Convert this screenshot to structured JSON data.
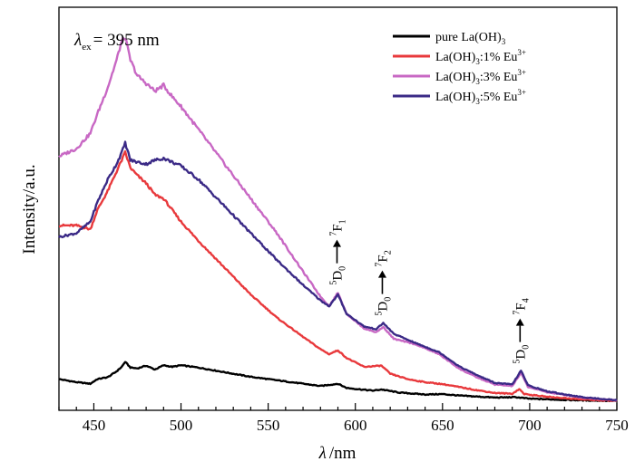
{
  "chart_data": {
    "type": "line",
    "title": "",
    "xlabel": "λ /nm",
    "xlabel_symbol": "λ",
    "xlabel_unit": "/nm",
    "ylabel": "Intensity/a.u.",
    "xlim": [
      430,
      750
    ],
    "ylim": [
      0,
      100
    ],
    "x_ticks": [
      450,
      500,
      550,
      600,
      650,
      700,
      750
    ],
    "y_tick_labels": false,
    "grid": false,
    "legend_position": "top-right",
    "excitation_label": {
      "symbol": "λ",
      "sub": "ex",
      "text": "= 395 nm"
    },
    "series": [
      {
        "name": "pure La(OH)3",
        "legend": {
          "text": "pure La(OH)",
          "sub": "3",
          "rest": "",
          "sup": ""
        },
        "color": "#000000",
        "points": [
          [
            430,
            6.0
          ],
          [
            440,
            5.2
          ],
          [
            448,
            4.8
          ],
          [
            452,
            6.0
          ],
          [
            458,
            6.5
          ],
          [
            463,
            8.0
          ],
          [
            466,
            9.2
          ],
          [
            468,
            10.5
          ],
          [
            471,
            9.0
          ],
          [
            475,
            8.8
          ],
          [
            480,
            9.5
          ],
          [
            485,
            8.5
          ],
          [
            490,
            9.6
          ],
          [
            495,
            9.2
          ],
          [
            500,
            9.6
          ],
          [
            510,
            9.0
          ],
          [
            525,
            7.8
          ],
          [
            540,
            6.6
          ],
          [
            560,
            5.4
          ],
          [
            580,
            4.2
          ],
          [
            590,
            4.8
          ],
          [
            595,
            3.7
          ],
          [
            610,
            3.0
          ],
          [
            615,
            3.3
          ],
          [
            625,
            2.5
          ],
          [
            640,
            2.0
          ],
          [
            650,
            2.1
          ],
          [
            660,
            1.7
          ],
          [
            680,
            1.2
          ],
          [
            692,
            1.3
          ],
          [
            700,
            0.9
          ],
          [
            720,
            0.6
          ],
          [
            750,
            0.3
          ]
        ]
      },
      {
        "name": "La(OH)3:1% Eu3+",
        "legend": {
          "text": "La(OH)",
          "sub": "3",
          "rest": ":1% Eu",
          "sup": "3+"
        },
        "color": "#e8393c",
        "points": [
          [
            430,
            46.0
          ],
          [
            440,
            46.0
          ],
          [
            448,
            45.0
          ],
          [
            452,
            50.0
          ],
          [
            458,
            55.0
          ],
          [
            463,
            60.0
          ],
          [
            466,
            63.0
          ],
          [
            468,
            65.0
          ],
          [
            471,
            61.0
          ],
          [
            475,
            59.0
          ],
          [
            480,
            57.0
          ],
          [
            485,
            54.0
          ],
          [
            490,
            53.0
          ],
          [
            495,
            50.0
          ],
          [
            500,
            47.0
          ],
          [
            510,
            42.0
          ],
          [
            525,
            35.0
          ],
          [
            540,
            28.0
          ],
          [
            555,
            22.0
          ],
          [
            570,
            17.0
          ],
          [
            580,
            13.8
          ],
          [
            585,
            12.5
          ],
          [
            590,
            13.5
          ],
          [
            595,
            11.5
          ],
          [
            605,
            9.2
          ],
          [
            615,
            9.5
          ],
          [
            620,
            7.4
          ],
          [
            630,
            6.0
          ],
          [
            640,
            5.2
          ],
          [
            650,
            4.7
          ],
          [
            660,
            3.9
          ],
          [
            670,
            3.1
          ],
          [
            680,
            2.4
          ],
          [
            690,
            2.2
          ],
          [
            694,
            3.4
          ],
          [
            697,
            2.1
          ],
          [
            710,
            1.4
          ],
          [
            730,
            0.7
          ],
          [
            750,
            0.3
          ]
        ]
      },
      {
        "name": "La(OH)3:3% Eu3+",
        "legend": {
          "text": "La(OH)",
          "sub": "3",
          "rest": ":3% Eu",
          "sup": "3+"
        },
        "color": "#c868c4",
        "points": [
          [
            430,
            64.0
          ],
          [
            440,
            66.0
          ],
          [
            448,
            70.0
          ],
          [
            452,
            75.0
          ],
          [
            458,
            82.0
          ],
          [
            463,
            89.0
          ],
          [
            466,
            94.0
          ],
          [
            468,
            95.0
          ],
          [
            471,
            89.0
          ],
          [
            475,
            85.0
          ],
          [
            480,
            83.0
          ],
          [
            485,
            81.0
          ],
          [
            490,
            82.5
          ],
          [
            495,
            79.5
          ],
          [
            500,
            77.0
          ],
          [
            510,
            71.0
          ],
          [
            525,
            62.0
          ],
          [
            540,
            53.0
          ],
          [
            555,
            44.0
          ],
          [
            570,
            34.0
          ],
          [
            580,
            27.5
          ],
          [
            585,
            25.0
          ],
          [
            590,
            28.5
          ],
          [
            595,
            23.0
          ],
          [
            605,
            19.2
          ],
          [
            612,
            18.2
          ],
          [
            616,
            19.6
          ],
          [
            622,
            16.5
          ],
          [
            635,
            15.0
          ],
          [
            648,
            12.5
          ],
          [
            660,
            8.6
          ],
          [
            670,
            6.4
          ],
          [
            680,
            4.6
          ],
          [
            690,
            4.2
          ],
          [
            695,
            7.6
          ],
          [
            699,
            4.0
          ],
          [
            710,
            2.6
          ],
          [
            730,
            1.2
          ],
          [
            750,
            0.5
          ]
        ]
      },
      {
        "name": "La(OH)3:5% Eu3+",
        "legend": {
          "text": "La(OH)",
          "sub": "3",
          "rest": ":5% Eu",
          "sup": "3+"
        },
        "color": "#3b2a86",
        "points": [
          [
            430,
            43.0
          ],
          [
            440,
            44.0
          ],
          [
            448,
            47.0
          ],
          [
            452,
            52.0
          ],
          [
            458,
            58.0
          ],
          [
            463,
            62.0
          ],
          [
            466,
            65.0
          ],
          [
            468,
            67.5
          ],
          [
            471,
            63.0
          ],
          [
            475,
            62.5
          ],
          [
            480,
            62.0
          ],
          [
            485,
            63.0
          ],
          [
            490,
            63.5
          ],
          [
            495,
            62.5
          ],
          [
            500,
            61.5
          ],
          [
            510,
            58.0
          ],
          [
            525,
            51.0
          ],
          [
            540,
            44.0
          ],
          [
            555,
            37.0
          ],
          [
            570,
            30.5
          ],
          [
            580,
            26.5
          ],
          [
            585,
            25.0
          ],
          [
            590,
            28.0
          ],
          [
            595,
            23.0
          ],
          [
            605,
            19.7
          ],
          [
            612,
            19.0
          ],
          [
            616,
            20.6
          ],
          [
            622,
            17.8
          ],
          [
            635,
            15.3
          ],
          [
            648,
            13.0
          ],
          [
            660,
            9.2
          ],
          [
            670,
            7.0
          ],
          [
            680,
            5.0
          ],
          [
            690,
            4.6
          ],
          [
            695,
            8.2
          ],
          [
            699,
            4.4
          ],
          [
            710,
            2.8
          ],
          [
            730,
            1.3
          ],
          [
            750,
            0.5
          ]
        ]
      }
    ],
    "annotations": [
      {
        "id": "d0-f1",
        "lower": "D",
        "lower_sup": "5",
        "lower_sub": "0",
        "upper": "F",
        "upper_sup": "7",
        "upper_sub": "1",
        "x": 590,
        "y": 30.5
      },
      {
        "id": "d0-f2",
        "lower": "D",
        "lower_sup": "5",
        "lower_sub": "0",
        "upper": "F",
        "upper_sup": "7",
        "upper_sub": "2",
        "x": 616,
        "y": 22.5
      },
      {
        "id": "d0-f4",
        "lower": "D",
        "lower_sup": "5",
        "lower_sub": "0",
        "upper": "F",
        "upper_sup": "7",
        "upper_sub": "4",
        "x": 695,
        "y": 10.0
      }
    ]
  }
}
